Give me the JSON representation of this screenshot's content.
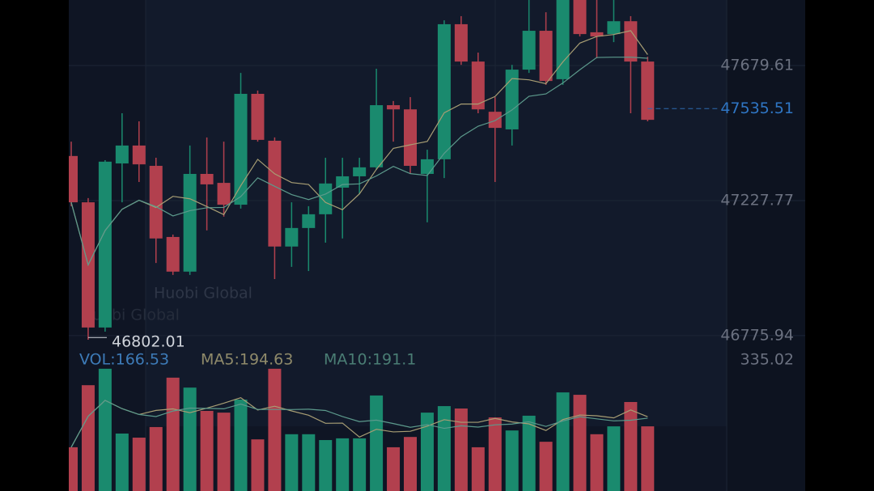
{
  "watermark": "Huobi Global",
  "chart_data": {
    "type": "candlestick",
    "ylim": [
      46735,
      47899
    ],
    "yticks": [
      47679.61,
      47227.77,
      46775.94
    ],
    "current_price": 47535.51,
    "low_marker": 46802.01,
    "up_color": "#1a8a6e",
    "down_color": "#b2404e",
    "candles": [
      {
        "open": 47377,
        "high": 47425,
        "low": 47209,
        "close": 47222
      },
      {
        "open": 47222,
        "high": 47236,
        "low": 46762,
        "close": 46803
      },
      {
        "open": 46803,
        "high": 47363,
        "low": 46789,
        "close": 47358
      },
      {
        "open": 47352,
        "high": 47520,
        "low": 47222,
        "close": 47412
      },
      {
        "open": 47412,
        "high": 47493,
        "low": 47290,
        "close": 47349
      },
      {
        "open": 47344,
        "high": 47371,
        "low": 47019,
        "close": 47101
      },
      {
        "open": 47106,
        "high": 47114,
        "low": 46979,
        "close": 46990
      },
      {
        "open": 46990,
        "high": 47412,
        "low": 46979,
        "close": 47317
      },
      {
        "open": 47317,
        "high": 47439,
        "low": 47128,
        "close": 47282
      },
      {
        "open": 47287,
        "high": 47425,
        "low": 47174,
        "close": 47214
      },
      {
        "open": 47214,
        "high": 47655,
        "low": 47201,
        "close": 47585
      },
      {
        "open": 47585,
        "high": 47596,
        "low": 47425,
        "close": 47431
      },
      {
        "open": 47428,
        "high": 47439,
        "low": 46965,
        "close": 47074
      },
      {
        "open": 47074,
        "high": 47222,
        "low": 47006,
        "close": 47136
      },
      {
        "open": 47136,
        "high": 47209,
        "low": 46992,
        "close": 47182
      },
      {
        "open": 47182,
        "high": 47371,
        "low": 47087,
        "close": 47285
      },
      {
        "open": 47271,
        "high": 47371,
        "low": 47101,
        "close": 47309
      },
      {
        "open": 47309,
        "high": 47371,
        "low": 47249,
        "close": 47339
      },
      {
        "open": 47339,
        "high": 47669,
        "low": 47331,
        "close": 47547
      },
      {
        "open": 47547,
        "high": 47561,
        "low": 47425,
        "close": 47533
      },
      {
        "open": 47533,
        "high": 47574,
        "low": 47317,
        "close": 47344
      },
      {
        "open": 47317,
        "high": 47398,
        "low": 47155,
        "close": 47366
      },
      {
        "open": 47366,
        "high": 47831,
        "low": 47303,
        "close": 47818
      },
      {
        "open": 47818,
        "high": 47845,
        "low": 47682,
        "close": 47693
      },
      {
        "open": 47693,
        "high": 47723,
        "low": 47520,
        "close": 47533
      },
      {
        "open": 47525,
        "high": 47574,
        "low": 47290,
        "close": 47471
      },
      {
        "open": 47466,
        "high": 47682,
        "low": 47412,
        "close": 47666
      },
      {
        "open": 47666,
        "high": 47899,
        "low": 47655,
        "close": 47796
      },
      {
        "open": 47796,
        "high": 47858,
        "low": 47615,
        "close": 47628
      },
      {
        "open": 47634,
        "high": 47899,
        "low": 47615,
        "close": 47899
      },
      {
        "open": 47899,
        "high": 47899,
        "low": 47777,
        "close": 47785
      },
      {
        "open": 47791,
        "high": 47899,
        "low": 47704,
        "close": 47777
      },
      {
        "open": 47785,
        "high": 47899,
        "low": 47758,
        "close": 47828
      },
      {
        "open": 47828,
        "high": 47845,
        "low": 47520,
        "close": 47693
      },
      {
        "open": 47693,
        "high": 47709,
        "low": 47493,
        "close": 47498
      }
    ],
    "volume": {
      "vol_label": "VOL:166.53",
      "ma5_label": "MA5:194.63",
      "ma10_label": "MA10:191.1",
      "ylim": [
        0,
        335.02
      ],
      "yticks": [
        335.02
      ],
      "values": [
        104,
        285,
        333,
        144,
        132,
        163,
        307,
        278,
        210,
        205,
        243,
        127,
        333,
        142,
        142,
        125,
        130,
        130,
        255,
        104,
        134,
        205,
        224,
        217,
        104,
        191,
        153,
        196,
        120,
        264,
        257,
        142,
        165,
        236,
        165
      ]
    }
  }
}
